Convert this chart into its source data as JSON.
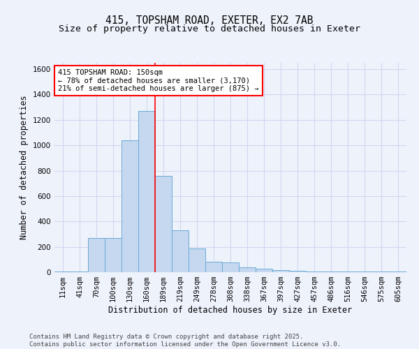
{
  "title": "415, TOPSHAM ROAD, EXETER, EX2 7AB",
  "subtitle": "Size of property relative to detached houses in Exeter",
  "xlabel": "Distribution of detached houses by size in Exeter",
  "ylabel": "Number of detached properties",
  "categories": [
    "11sqm",
    "41sqm",
    "70sqm",
    "100sqm",
    "130sqm",
    "160sqm",
    "189sqm",
    "219sqm",
    "249sqm",
    "278sqm",
    "308sqm",
    "338sqm",
    "367sqm",
    "397sqm",
    "427sqm",
    "457sqm",
    "486sqm",
    "516sqm",
    "546sqm",
    "575sqm",
    "605sqm"
  ],
  "values": [
    4,
    4,
    270,
    270,
    1040,
    1270,
    760,
    330,
    185,
    85,
    75,
    40,
    30,
    15,
    10,
    5,
    3,
    3,
    3,
    3,
    3
  ],
  "bar_color": "#c5d8f0",
  "bar_edge_color": "#6aaad4",
  "background_color": "#eef2fb",
  "grid_color": "#d0d8ee",
  "red_line_x": 5.5,
  "annotation_title": "415 TOPSHAM ROAD: 150sqm",
  "annotation_line1": "← 78% of detached houses are smaller (3,170)",
  "annotation_line2": "21% of semi-detached houses are larger (875) →",
  "ylim": [
    0,
    1650
  ],
  "yticks": [
    0,
    200,
    400,
    600,
    800,
    1000,
    1200,
    1400,
    1600
  ],
  "footer_line1": "Contains HM Land Registry data © Crown copyright and database right 2025.",
  "footer_line2": "Contains public sector information licensed under the Open Government Licence v3.0.",
  "title_fontsize": 10.5,
  "subtitle_fontsize": 9.5,
  "axis_label_fontsize": 8.5,
  "tick_fontsize": 7.5,
  "annotation_fontsize": 7.5,
  "footer_fontsize": 6.5
}
